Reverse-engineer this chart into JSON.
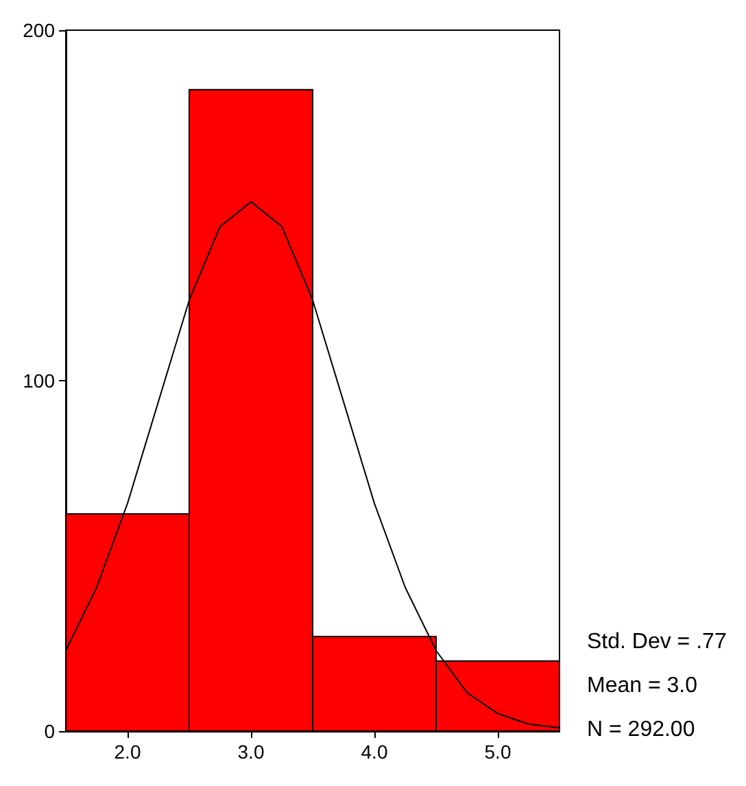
{
  "chart_data": {
    "type": "histogram",
    "bins": [
      1.5,
      2.5,
      3.5,
      4.5,
      5.5
    ],
    "values": [
      62,
      183,
      27,
      20
    ],
    "color": "#ff0000",
    "series": [
      {
        "type": "line",
        "color": "#000000",
        "x": [
          1.5,
          1.75,
          2.0,
          2.25,
          2.5,
          2.75,
          3.0,
          3.25,
          3.5,
          3.75,
          4.0,
          4.25,
          4.5,
          4.75,
          5.0,
          5.25,
          5.5
        ],
        "values": [
          23,
          41,
          65,
          94,
          123,
          144,
          151,
          144,
          123,
          94,
          65,
          41,
          23,
          11,
          5,
          2,
          1
        ]
      }
    ],
    "xlim": [
      1.5,
      5.5
    ],
    "xticks": [
      {
        "value": 2,
        "label": "2.0"
      },
      {
        "value": 3,
        "label": "3.0"
      },
      {
        "value": 4,
        "label": "4.0"
      },
      {
        "value": 5,
        "label": "5.0"
      }
    ],
    "ylim": [
      0,
      200
    ],
    "yticks": [
      0,
      100,
      200
    ],
    "grid": false,
    "annotations": [
      "Std. Dev = .77",
      "Mean = 3.0",
      "N = 292.00"
    ]
  }
}
